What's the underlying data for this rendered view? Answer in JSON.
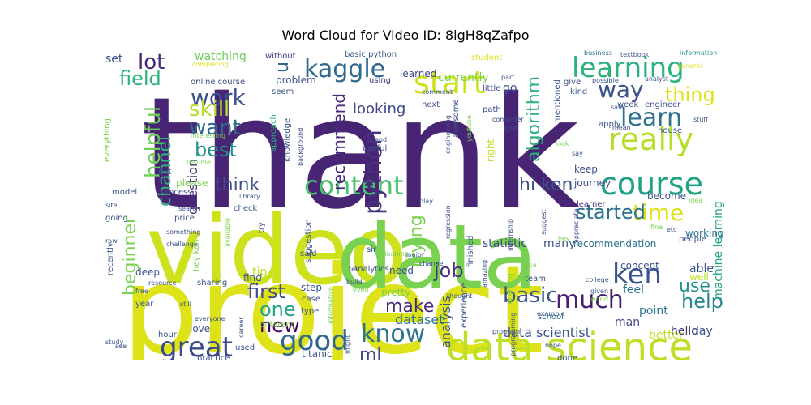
{
  "title": "Word Cloud for Video ID: 8igH8qZafpo",
  "words": [
    {
      "text": "thank",
      "color": "#482475"
    },
    {
      "text": "project",
      "color": "#dde318"
    },
    {
      "text": "video",
      "color": "#cde11d"
    },
    {
      "text": "data",
      "color": "#7ad151"
    },
    {
      "text": "data science",
      "color": "#bddf26"
    },
    {
      "text": "learning",
      "color": "#2db27d"
    },
    {
      "text": "kaggle",
      "color": "#31688e"
    },
    {
      "text": "start",
      "color": "#cde11d"
    },
    {
      "text": "really",
      "color": "#b5de2b"
    },
    {
      "text": "course",
      "color": "#1fa187"
    },
    {
      "text": "content",
      "color": "#4ac16d"
    },
    {
      "text": "learn",
      "color": "#2c728e"
    },
    {
      "text": "way",
      "color": "#3b528b"
    },
    {
      "text": "time",
      "color": "#dde318"
    },
    {
      "text": "ken",
      "color": "#39558c"
    },
    {
      "text": "much",
      "color": "#481f70"
    },
    {
      "text": "good",
      "color": "#31688e"
    },
    {
      "text": "great",
      "color": "#3e4989"
    },
    {
      "text": "know",
      "color": "#2c728e"
    },
    {
      "text": "python",
      "color": "#46327e"
    },
    {
      "text": "work",
      "color": "#3b528b"
    },
    {
      "text": "want",
      "color": "#31688e"
    },
    {
      "text": "best",
      "color": "#21918c"
    },
    {
      "text": "lot",
      "color": "#482878"
    },
    {
      "text": "field",
      "color": "#2db27d"
    },
    {
      "text": "skill",
      "color": "#b5de2b"
    },
    {
      "text": "helpful",
      "color": "#6ece58"
    },
    {
      "text": "channel",
      "color": "#2db27d"
    },
    {
      "text": "thing",
      "color": "#dde318"
    },
    {
      "text": "help",
      "color": "#25858e"
    },
    {
      "text": "use",
      "color": "#21918c"
    },
    {
      "text": "basic",
      "color": "#3b528b"
    },
    {
      "text": "make",
      "color": "#472c7a"
    },
    {
      "text": "new",
      "color": "#440154"
    },
    {
      "text": "first",
      "color": "#3e4989"
    },
    {
      "text": "one",
      "color": "#20a386"
    },
    {
      "text": "ml",
      "color": "#3e4989"
    },
    {
      "text": "job",
      "color": "#472d7b"
    },
    {
      "text": "started",
      "color": "#2c728e"
    },
    {
      "text": "recommend",
      "color": "#482878"
    },
    {
      "text": "algorithm",
      "color": "#2db27d"
    },
    {
      "text": "trying",
      "color": "#7ad151"
    },
    {
      "text": "beginner",
      "color": "#7ad151"
    },
    {
      "text": "think",
      "color": "#3b528b"
    },
    {
      "text": "hi ken",
      "color": "#3b528b"
    },
    {
      "text": "question",
      "color": "#46327e"
    },
    {
      "text": "looking",
      "color": "#3e4989"
    },
    {
      "text": "u",
      "color": "#31688e"
    },
    {
      "text": "analysis",
      "color": "#3b528b"
    },
    {
      "text": "dataset",
      "color": "#2c728e"
    },
    {
      "text": "data scientist",
      "color": "#3b528b"
    },
    {
      "text": "statistic",
      "color": "#3e4989"
    },
    {
      "text": "many",
      "color": "#3b528b"
    },
    {
      "text": "machine learning",
      "color": "#20a386"
    },
    {
      "text": "recommendation",
      "color": "#2c728e"
    },
    {
      "text": "working",
      "color": "#2c728e"
    },
    {
      "text": "keep",
      "color": "#3b528b"
    },
    {
      "text": "journey",
      "color": "#3e4989"
    },
    {
      "text": "learner",
      "color": "#46327e"
    },
    {
      "text": "become",
      "color": "#3b528b"
    },
    {
      "text": "concept",
      "color": "#3b528b"
    },
    {
      "text": "feel",
      "color": "#2c728e"
    },
    {
      "text": "able",
      "color": "#3b528b"
    },
    {
      "text": "well",
      "color": "#bddf26"
    },
    {
      "text": "man",
      "color": "#3e4989"
    },
    {
      "text": "point",
      "color": "#2c728e"
    },
    {
      "text": "better",
      "color": "#bddf26"
    },
    {
      "text": "hello",
      "color": "#46327e"
    },
    {
      "text": "day",
      "color": "#3b528b"
    },
    {
      "text": "watching",
      "color": "#6ece58"
    },
    {
      "text": "set",
      "color": "#3b528b"
    },
    {
      "text": "completing",
      "color": "#dde318"
    },
    {
      "text": "without",
      "color": "#46327e"
    },
    {
      "text": "basic python",
      "color": "#3b528b"
    },
    {
      "text": "learned",
      "color": "#3e4989"
    },
    {
      "text": "currently",
      "color": "#7ad151"
    },
    {
      "text": "student",
      "color": "#dde318"
    },
    {
      "text": "little",
      "color": "#3e4989"
    },
    {
      "text": "part",
      "color": "#3b528b"
    },
    {
      "text": "business",
      "color": "#2c728e"
    },
    {
      "text": "textbook",
      "color": "#3b528b"
    },
    {
      "text": "information",
      "color": "#21918c"
    },
    {
      "text": "online course",
      "color": "#3e4989"
    },
    {
      "text": "problem",
      "color": "#3b528b"
    },
    {
      "text": "seem",
      "color": "#3b528b"
    },
    {
      "text": "using",
      "color": "#46327e"
    },
    {
      "text": "comment",
      "color": "#3b528b"
    },
    {
      "text": "next",
      "color": "#3b528b"
    },
    {
      "text": "mentioned",
      "color": "#3b528b"
    },
    {
      "text": "give",
      "color": "#3b528b"
    },
    {
      "text": "possible",
      "color": "#3b528b"
    },
    {
      "text": "kind",
      "color": "#3b528b"
    },
    {
      "text": "analyst",
      "color": "#3b528b"
    },
    {
      "text": "general",
      "color": "#dde318"
    },
    {
      "text": "sale",
      "color": "#3b528b"
    },
    {
      "text": "week",
      "color": "#3b528b"
    },
    {
      "text": "engineer",
      "color": "#3b528b"
    },
    {
      "text": "stuff",
      "color": "#3b528b"
    },
    {
      "text": "path",
      "color": "#3b528b"
    },
    {
      "text": "computer",
      "color": "#3b528b"
    },
    {
      "text": "got",
      "color": "#3b528b"
    },
    {
      "text": "apply",
      "color": "#3b528b"
    },
    {
      "text": "mean",
      "color": "#3b528b"
    },
    {
      "text": "house",
      "color": "#3b528b"
    },
    {
      "text": "awesome",
      "color": "#3b528b"
    },
    {
      "text": "end",
      "color": "#3b528b"
    },
    {
      "text": "useful",
      "color": "#3b528b"
    },
    {
      "text": "everything",
      "color": "#7ad151"
    },
    {
      "text": "interesting",
      "color": "#7ad151"
    },
    {
      "text": "resume",
      "color": "#7ad151"
    },
    {
      "text": "approach",
      "color": "#2db27d"
    },
    {
      "text": "knowledge",
      "color": "#3b528b"
    },
    {
      "text": "background",
      "color": "#3b528b"
    },
    {
      "text": "youtube",
      "color": "#7ad151"
    },
    {
      "text": "engineering",
      "color": "#3b528b"
    },
    {
      "text": "right",
      "color": "#bddf26"
    },
    {
      "text": "school",
      "color": "#2c728e"
    },
    {
      "text": "experience",
      "color": "#3b528b"
    },
    {
      "text": "look",
      "color": "#7ad151"
    },
    {
      "text": "say",
      "color": "#3b528b"
    },
    {
      "text": "idea",
      "color": "#7ad151"
    },
    {
      "text": "fine",
      "color": "#7ad151"
    },
    {
      "text": "etc",
      "color": "#3b528b"
    },
    {
      "text": "people",
      "color": "#3b528b"
    },
    {
      "text": "put",
      "color": "#3b528b"
    },
    {
      "text": "model",
      "color": "#3b528b"
    },
    {
      "text": "process",
      "color": "#3b528b"
    },
    {
      "text": "please",
      "color": "#7ad151"
    },
    {
      "text": "library",
      "color": "#3b528b"
    },
    {
      "text": "check",
      "color": "#3b528b"
    },
    {
      "text": "site",
      "color": "#3b528b"
    },
    {
      "text": "search",
      "color": "#3b528b"
    },
    {
      "text": "going",
      "color": "#3b528b"
    },
    {
      "text": "price",
      "color": "#3b528b"
    },
    {
      "text": "something",
      "color": "#3b528b"
    },
    {
      "text": "raw",
      "color": "#3b528b"
    },
    {
      "text": "challenge",
      "color": "#3b528b"
    },
    {
      "text": "recently",
      "color": "#3b528b"
    },
    {
      "text": "available",
      "color": "#7ad151"
    },
    {
      "text": "try",
      "color": "#3b528b"
    },
    {
      "text": "suggestion",
      "color": "#3b528b"
    },
    {
      "text": "said",
      "color": "#3b528b"
    },
    {
      "text": "sir",
      "color": "#3b528b"
    },
    {
      "text": "play",
      "color": "#3b528b"
    },
    {
      "text": "regression",
      "color": "#3b528b"
    },
    {
      "text": "cleaning",
      "color": "#7ad151"
    },
    {
      "text": "major",
      "color": "#3b528b"
    },
    {
      "text": "change",
      "color": "#3b528b"
    },
    {
      "text": "finished",
      "color": "#3b528b"
    },
    {
      "text": "internship",
      "color": "#3b528b"
    },
    {
      "text": "nice",
      "color": "#7ad151"
    },
    {
      "text": "suggest",
      "color": "#3b528b"
    },
    {
      "text": "appreciate",
      "color": "#3b528b"
    },
    {
      "text": "hey",
      "color": "#7ad151"
    },
    {
      "text": "deep",
      "color": "#3b528b"
    },
    {
      "text": "resource",
      "color": "#3b528b"
    },
    {
      "text": "free",
      "color": "#3b528b"
    },
    {
      "text": "year",
      "color": "#3b528b"
    },
    {
      "text": "hey ken",
      "color": "#7ad151"
    },
    {
      "text": "sharing",
      "color": "#3b528b"
    },
    {
      "text": "still",
      "color": "#3b528b"
    },
    {
      "text": "tip",
      "color": "#bddf26"
    },
    {
      "text": "find",
      "color": "#3b528b"
    },
    {
      "text": "step",
      "color": "#3b528b"
    },
    {
      "text": "case",
      "color": "#3b528b"
    },
    {
      "text": "type",
      "color": "#3b528b"
    },
    {
      "text": "tell",
      "color": "#3b528b"
    },
    {
      "text": "build",
      "color": "#3b528b"
    },
    {
      "text": "even",
      "color": "#7ad151"
    },
    {
      "text": "analytics",
      "color": "#3b528b"
    },
    {
      "text": "need",
      "color": "#3b528b"
    },
    {
      "text": "pretty",
      "color": "#7ad151"
    },
    {
      "text": "amazing",
      "color": "#3b528b"
    },
    {
      "text": "thought",
      "color": "#3b528b"
    },
    {
      "text": "starting",
      "color": "#7ad151"
    },
    {
      "text": "team",
      "color": "#3b528b"
    },
    {
      "text": "college",
      "color": "#3b528b"
    },
    {
      "text": "given",
      "color": "#3b528b"
    },
    {
      "text": "world",
      "color": "#7ad151"
    },
    {
      "text": "love",
      "color": "#3b528b"
    },
    {
      "text": "hour",
      "color": "#3b528b"
    },
    {
      "text": "different",
      "color": "#7ad151"
    },
    {
      "text": "everyone",
      "color": "#3b528b"
    },
    {
      "text": "career",
      "color": "#3b528b"
    },
    {
      "text": "used",
      "color": "#3b528b"
    },
    {
      "text": "titanic",
      "color": "#3b528b"
    },
    {
      "text": "practice",
      "color": "#3b528b"
    },
    {
      "text": "study",
      "color": "#3b528b"
    },
    {
      "text": "see",
      "color": "#3b528b"
    },
    {
      "text": "informative",
      "color": "#7ad151"
    },
    {
      "text": "might",
      "color": "#3b528b"
    },
    {
      "text": "program",
      "color": "#3b528b"
    },
    {
      "text": "example",
      "color": "#3b528b"
    },
    {
      "text": "hope",
      "color": "#3b528b"
    },
    {
      "text": "done",
      "color": "#3b528b"
    },
    {
      "text": "go",
      "color": "#3b528b"
    },
    {
      "text": "programming",
      "color": "#3b528b"
    }
  ]
}
